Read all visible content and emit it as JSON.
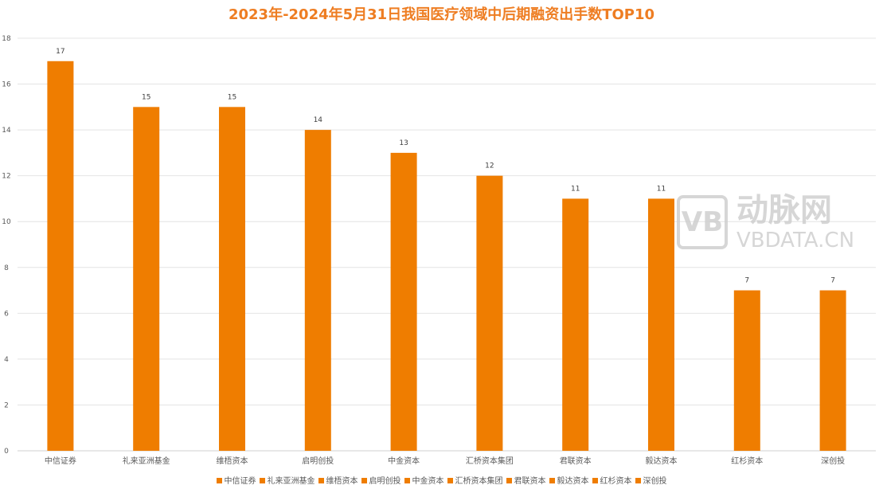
{
  "chart_data": {
    "type": "bar",
    "title": "2023年-2024年5月31日我国医疗领域中后期融资出手数TOP10",
    "categories": [
      "中信证券",
      "礼来亚洲基金",
      "维梧资本",
      "启明创投",
      "中金资本",
      "汇桥资本集团",
      "君联资本",
      "毅达资本",
      "红杉资本",
      "深创投"
    ],
    "values": [
      17,
      15,
      15,
      14,
      13,
      12,
      11,
      11,
      7,
      7
    ],
    "ylim": [
      0,
      18
    ],
    "yticks": [
      0,
      2,
      4,
      6,
      8,
      10,
      12,
      14,
      16,
      18
    ],
    "grid": true,
    "legend": "bottom",
    "color": "#ef7d00"
  },
  "watermark": {
    "logo": "VB",
    "cn": "动脉网",
    "en": "VBDATA.CN"
  }
}
